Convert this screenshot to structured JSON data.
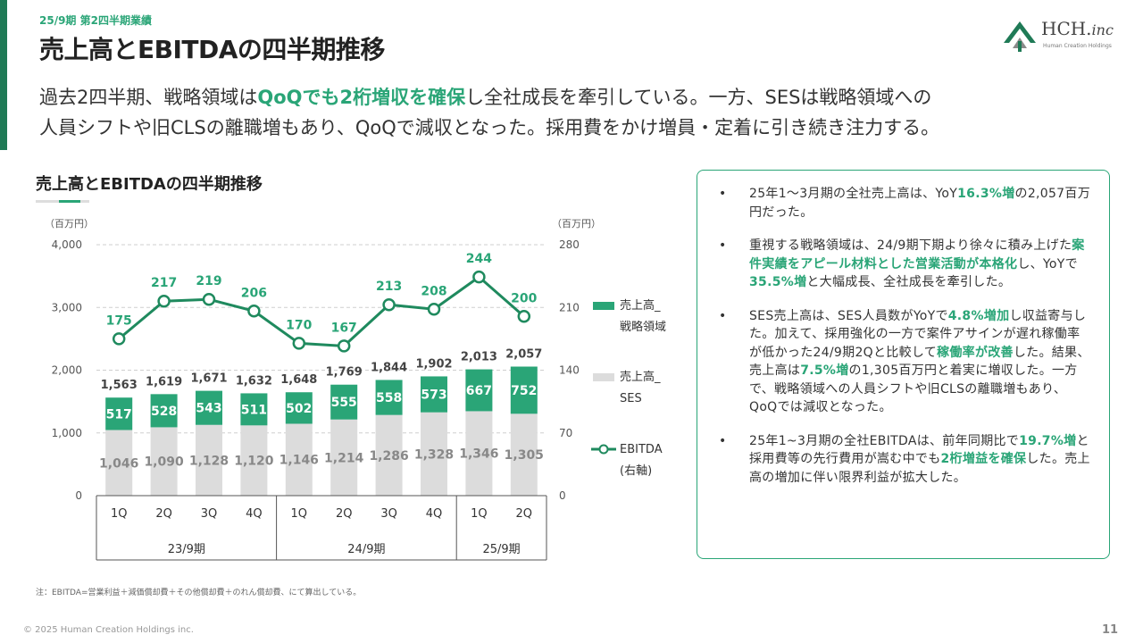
{
  "header": {
    "period_label": "25/9期 第2四半期業績",
    "title": "売上高とEBITDAの四半期推移"
  },
  "logo": {
    "name": "HCH.",
    "suffix": "inc",
    "sub": "Human Creation Holdings"
  },
  "lead": {
    "line1": [
      {
        "text": "過去2四半期、戦略領域は",
        "hl": false
      },
      {
        "text": "QoQでも2桁増収を確保",
        "hl": true
      },
      {
        "text": "し全社成長を牽引している。一方、SESは戦略領域への",
        "hl": false
      }
    ],
    "line2": [
      {
        "text": "人員シフトや旧CLSの離職増もあり、QoQで減収となった。採用費をかけ増員・定着に引き続き注力する。",
        "hl": false
      }
    ]
  },
  "chart_title": "売上高とEBITDAの四半期推移",
  "chart_data": {
    "type": "bar",
    "bar_mode": "stacked",
    "left_unit": "（百万円）",
    "right_unit": "（百万円）",
    "ylim_left": [
      0,
      4000
    ],
    "yticks_left": [
      "0",
      "1,000",
      "2,000",
      "3,000",
      "4,000"
    ],
    "ylim_right": [
      0,
      280
    ],
    "yticks_right": [
      "0",
      "70",
      "140",
      "210",
      "280"
    ],
    "categories": [
      "1Q",
      "2Q",
      "3Q",
      "4Q",
      "1Q",
      "2Q",
      "3Q",
      "4Q",
      "1Q",
      "2Q"
    ],
    "groups": [
      {
        "label": "23/9期",
        "count": 4
      },
      {
        "label": "24/9期",
        "count": 4
      },
      {
        "label": "25/9期",
        "count": 2
      }
    ],
    "series": [
      {
        "name": "売上高_SES",
        "type": "bar",
        "color": "#dcdcdc",
        "values": [
          1046,
          1090,
          1128,
          1120,
          1146,
          1214,
          1286,
          1328,
          1346,
          1305
        ],
        "labels": [
          "1,046",
          "1,090",
          "1,128",
          "1,120",
          "1,146",
          "1,214",
          "1,286",
          "1,328",
          "1,346",
          "1,305"
        ]
      },
      {
        "name": "売上高_戦略領域",
        "type": "bar",
        "color": "#2aa577",
        "values": [
          517,
          528,
          543,
          511,
          502,
          555,
          558,
          573,
          667,
          752
        ],
        "labels": [
          "517",
          "528",
          "543",
          "511",
          "502",
          "555",
          "558",
          "573",
          "667",
          "752"
        ]
      },
      {
        "name": "EBITDA (右軸)",
        "type": "line",
        "axis": "right",
        "color": "#1f8a5e",
        "values": [
          175,
          217,
          219,
          206,
          170,
          167,
          213,
          208,
          244,
          200
        ],
        "labels": [
          "175",
          "217",
          "219",
          "206",
          "170",
          "167",
          "213",
          "208",
          "244",
          "200"
        ]
      }
    ],
    "totals": [
      1563,
      1619,
      1671,
      1632,
      1648,
      1769,
      1844,
      1902,
      2013,
      2057
    ],
    "total_labels": [
      "1,563",
      "1,619",
      "1,671",
      "1,632",
      "1,648",
      "1,769",
      "1,844",
      "1,902",
      "2,013",
      "2,057"
    ],
    "legend": [
      {
        "line1": "売上高_",
        "line2": "戦略領域",
        "kind": "bar",
        "color": "#2aa577"
      },
      {
        "line1": "売上高_",
        "line2": "SES",
        "kind": "bar",
        "color": "#dcdcdc"
      },
      {
        "line1": "EBITDA",
        "line2": "(右軸)",
        "kind": "line",
        "color": "#1f8a5e"
      }
    ],
    "legend_position": "right",
    "grid": true
  },
  "panel": {
    "bullets": [
      [
        {
          "text": "25年1～3月期の全社売上高は、YoY",
          "hl": false
        },
        {
          "text": "16.3%増",
          "hl": true
        },
        {
          "text": "の2,057百万円だった。",
          "hl": false
        }
      ],
      [
        {
          "text": "重視する戦略領域は、24/9期下期より徐々に積み上げた",
          "hl": false
        },
        {
          "text": "案件実績をアピール材料とした営業活動が本格化",
          "hl": true
        },
        {
          "text": "し、YoYで",
          "hl": false
        },
        {
          "text": "35.5%増",
          "hl": true
        },
        {
          "text": "と大幅成長、全社成長を牽引した。",
          "hl": false
        }
      ],
      [
        {
          "text": "SES売上高は、SES人員数がYoYで",
          "hl": false
        },
        {
          "text": "4.8%増加",
          "hl": true
        },
        {
          "text": "し収益寄与した。加えて、採用強化の一方で案件アサインが遅れ稼働率が低かった24/9期2Qと比較して",
          "hl": false
        },
        {
          "text": "稼働率が改善",
          "hl": true
        },
        {
          "text": "した。結果、売上高は",
          "hl": false
        },
        {
          "text": "7.5%増",
          "hl": true
        },
        {
          "text": "の1,305百万円と着実に増収した。一方で、戦略領域への人員シフトや旧CLSの離職増もあり、QoQでは減収となった。",
          "hl": false
        }
      ],
      [
        {
          "text": "25年1~3月期の全社EBITDAは、前年同期比で",
          "hl": false
        },
        {
          "text": "19.7%増",
          "hl": true
        },
        {
          "text": "と採用費等の先行費用が嵩む中でも",
          "hl": false
        },
        {
          "text": "2桁増益を確保",
          "hl": true
        },
        {
          "text": "した。売上高の増加に伴い限界利益が拡大した。",
          "hl": false
        }
      ]
    ]
  },
  "footnote": "注：EBITDA=営業利益＋減価償却費＋その他償却費＋のれん償却費、にて算出している。",
  "footer": {
    "copyright": "© 2025 Human Creation Holdings inc.",
    "page_number": "11"
  }
}
